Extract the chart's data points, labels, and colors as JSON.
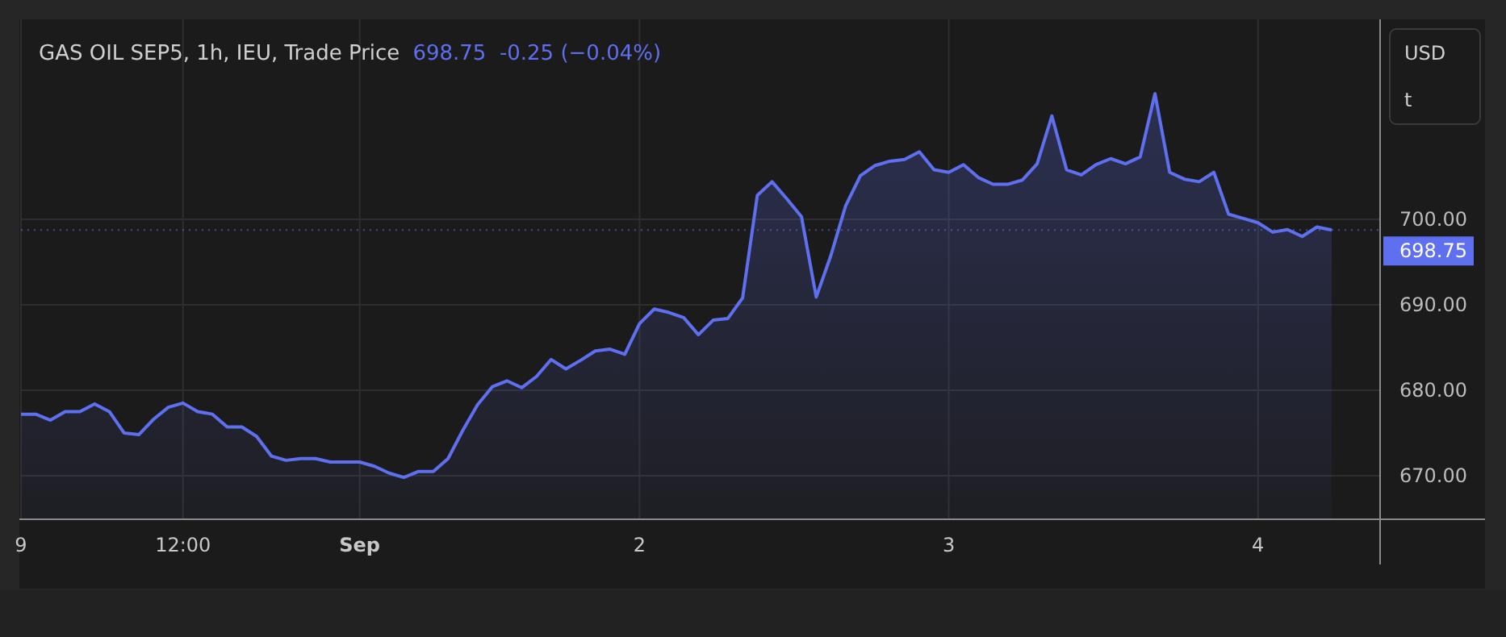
{
  "chart_data": {
    "type": "area",
    "title": "GAS OIL SEP5, 1h, IEU, Trade Price",
    "subtitle": "698.75  -0.25 (−0.04%)",
    "annotations": [
      "USD",
      "t"
    ],
    "categories": [
      "9",
      null,
      null,
      null,
      null,
      null,
      null,
      null,
      null,
      null,
      null,
      "12:00",
      null,
      null,
      null,
      null,
      null,
      null,
      null,
      null,
      null,
      null,
      null,
      "Sep",
      null,
      null,
      null,
      null,
      null,
      null,
      null,
      null,
      null,
      null,
      null,
      null,
      null,
      null,
      null,
      null,
      null,
      null,
      "2",
      null,
      null,
      null,
      null,
      null,
      null,
      null,
      null,
      null,
      null,
      null,
      null,
      null,
      null,
      null,
      null,
      null,
      null,
      null,
      null,
      "3",
      null,
      null,
      null,
      null,
      null,
      null,
      null,
      null,
      null,
      null,
      null,
      null,
      null,
      null,
      null,
      null,
      null,
      null,
      null,
      null,
      "4",
      null,
      null,
      null,
      null,
      null
    ],
    "series": [
      {
        "color": "#5e6ff0",
        "values": [
          677.2,
          677.2,
          676.5,
          677.5,
          677.5,
          678.4,
          677.5,
          675.0,
          674.8,
          676.6,
          678.0,
          678.5,
          677.5,
          677.2,
          675.7,
          675.7,
          674.6,
          672.3,
          671.8,
          672.0,
          672.0,
          671.6,
          671.6,
          671.6,
          671.1,
          670.3,
          669.8,
          670.5,
          670.5,
          672.0,
          675.3,
          678.3,
          680.4,
          681.1,
          680.3,
          681.6,
          683.6,
          682.5,
          683.5,
          684.6,
          684.8,
          684.2,
          687.8,
          689.5,
          689.1,
          688.5,
          686.5,
          688.2,
          688.4,
          690.8,
          702.8,
          704.4,
          702.4,
          700.3,
          690.9,
          695.8,
          701.6,
          705.1,
          706.3,
          706.8,
          707.0,
          707.9,
          705.8,
          705.5,
          706.4,
          704.9,
          704.1,
          704.1,
          704.6,
          706.5,
          712.1,
          705.8,
          705.2,
          706.4,
          707.1,
          706.5,
          707.3,
          714.7,
          705.5,
          704.7,
          704.4,
          705.5,
          700.6,
          700.1,
          699.6,
          698.5,
          698.8,
          698.0,
          699.1,
          698.75
        ]
      }
    ],
    "ylim": [
      664.9,
      723.4
    ],
    "yticks": [
      {
        "value": 670,
        "label": "670.00"
      },
      {
        "value": 680,
        "label": "680.00"
      },
      {
        "value": 690,
        "label": "690.00"
      },
      {
        "value": 700,
        "label": "700.00"
      }
    ],
    "ref_lines": [
      {
        "axis": "y",
        "value": 698.75,
        "label": "698.75",
        "color": "#5e6ff0"
      }
    ],
    "grid": true,
    "legend": false,
    "marker": "none",
    "line_style": "solid"
  }
}
